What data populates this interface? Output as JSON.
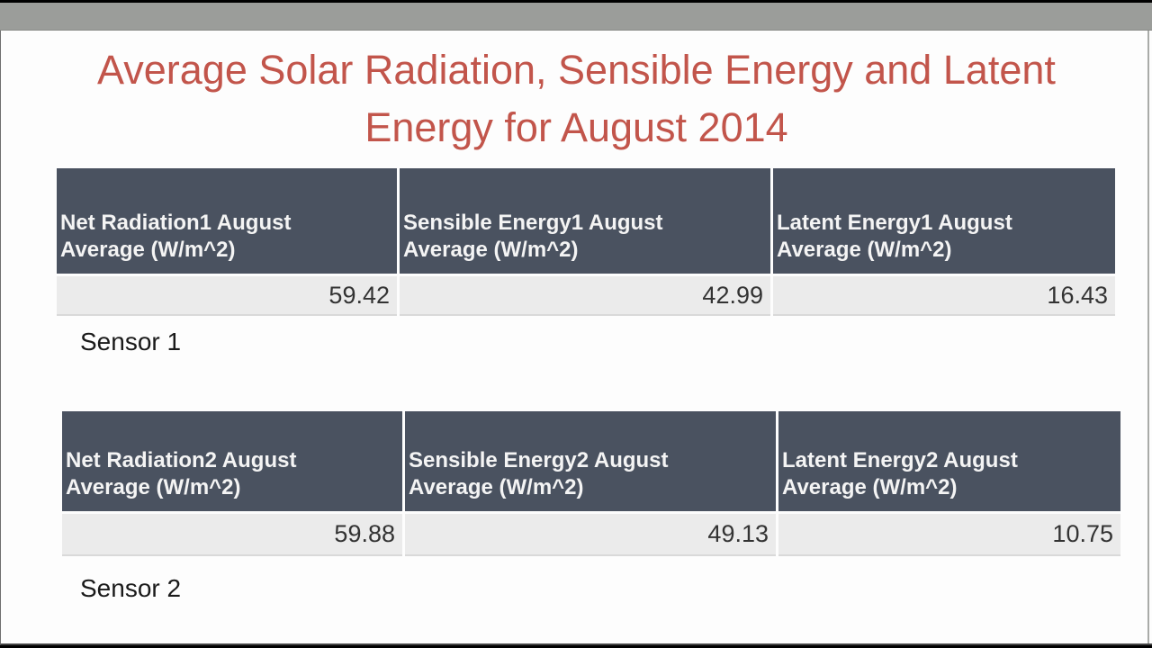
{
  "slide": {
    "title_line1": "Average Solar Radiation, Sensible Energy and Latent",
    "title_line2": "Energy for August 2014"
  },
  "tables": [
    {
      "sensor_label": "Sensor 1",
      "columns": [
        {
          "header_line1": "Net Radiation1 August",
          "header_line2": "Average (W/m^2)",
          "value": "59.42"
        },
        {
          "header_line1": "Sensible Energy1 August",
          "header_line2": "Average (W/m^2)",
          "value": "42.99"
        },
        {
          "header_line1": "Latent Energy1 August",
          "header_line2": "Average (W/m^2)",
          "value": "16.43"
        }
      ]
    },
    {
      "sensor_label": "Sensor 2",
      "columns": [
        {
          "header_line1": "Net Radiation2 August",
          "header_line2": "Average (W/m^2)",
          "value": "59.88"
        },
        {
          "header_line1": "Sensible Energy2 August",
          "header_line2": "Average (W/m^2)",
          "value": "49.13"
        },
        {
          "header_line1": "Latent Energy2 August",
          "header_line2": "Average (W/m^2)",
          "value": "10.75"
        }
      ]
    }
  ],
  "chart_data": [
    {
      "type": "table",
      "title": "Sensor 1",
      "categories": [
        "Net Radiation1 August Average (W/m^2)",
        "Sensible Energy1 August Average (W/m^2)",
        "Latent Energy1 August Average (W/m^2)"
      ],
      "values": [
        59.42,
        42.99,
        16.43
      ]
    },
    {
      "type": "table",
      "title": "Sensor 2",
      "categories": [
        "Net Radiation2 August Average (W/m^2)",
        "Sensible Energy2 August Average (W/m^2)",
        "Latent Energy2 August Average (W/m^2)"
      ],
      "values": [
        59.88,
        49.13,
        10.75
      ]
    }
  ],
  "colors": {
    "title_text": "#c2554b",
    "table_header_bg": "#4a5260",
    "table_value_bg": "#ebebeb",
    "player_bar": "#9b9d9a",
    "letterbox": "#000000"
  }
}
